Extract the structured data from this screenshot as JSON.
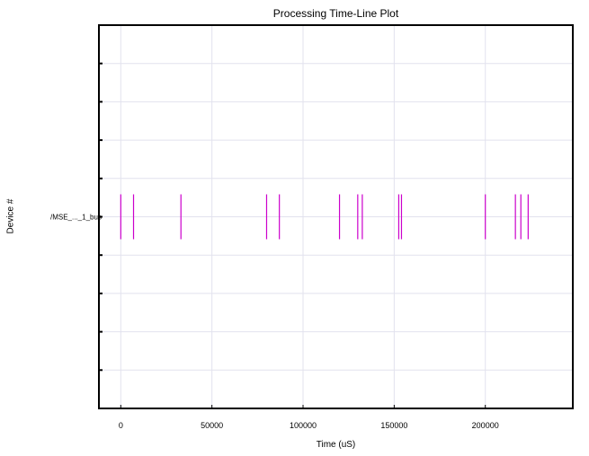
{
  "chart_data": {
    "type": "scatter",
    "title": "Processing Time-Line Plot",
    "xlabel": "Time (uS)",
    "ylabel": "Device #",
    "xlim": [
      -12000,
      248000
    ],
    "ylim": [
      -5,
      5
    ],
    "x_ticks": [
      0,
      50000,
      100000,
      150000,
      200000
    ],
    "y_tick_count": 10,
    "grid": true,
    "legend": "none",
    "device_labels": [
      "/MSE_..._1_bus"
    ],
    "series": [
      {
        "device_index": 0,
        "y": 0,
        "x": [
          0,
          7000,
          33000,
          80000,
          87000,
          120000,
          130000,
          132500,
          152500,
          154000,
          200000,
          216500,
          219500,
          223500
        ]
      }
    ],
    "colors": {
      "marker": "#cc00cc",
      "grid": "#e2e2ee",
      "axis": "#000000"
    }
  }
}
